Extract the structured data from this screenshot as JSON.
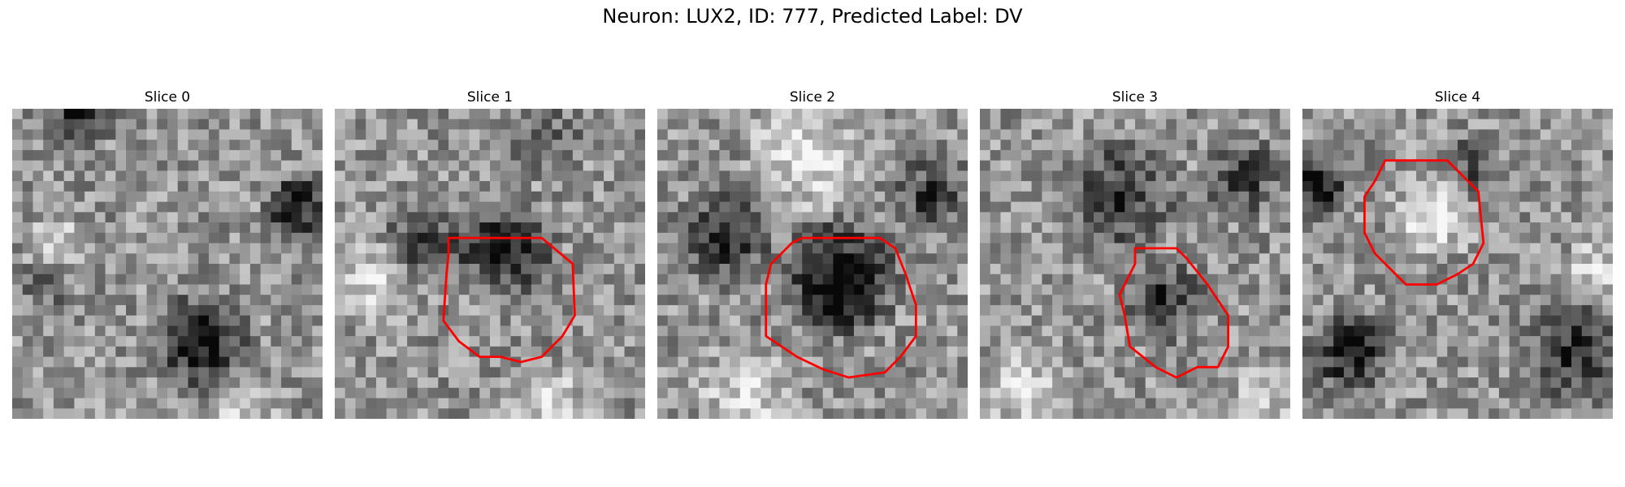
{
  "figure": {
    "title": "Neuron: LUX2, ID: 777, Predicted Label: DV"
  },
  "panels": [
    {
      "title": "Slice 0",
      "has_contour": false,
      "seed": 11
    },
    {
      "title": "Slice 1",
      "has_contour": true,
      "seed": 23
    },
    {
      "title": "Slice 2",
      "has_contour": true,
      "seed": 37
    },
    {
      "title": "Slice 3",
      "has_contour": true,
      "seed": 41
    },
    {
      "title": "Slice 4",
      "has_contour": true,
      "seed": 53
    }
  ],
  "colors": {
    "contour": "#ff0000",
    "background": "#ffffff"
  }
}
